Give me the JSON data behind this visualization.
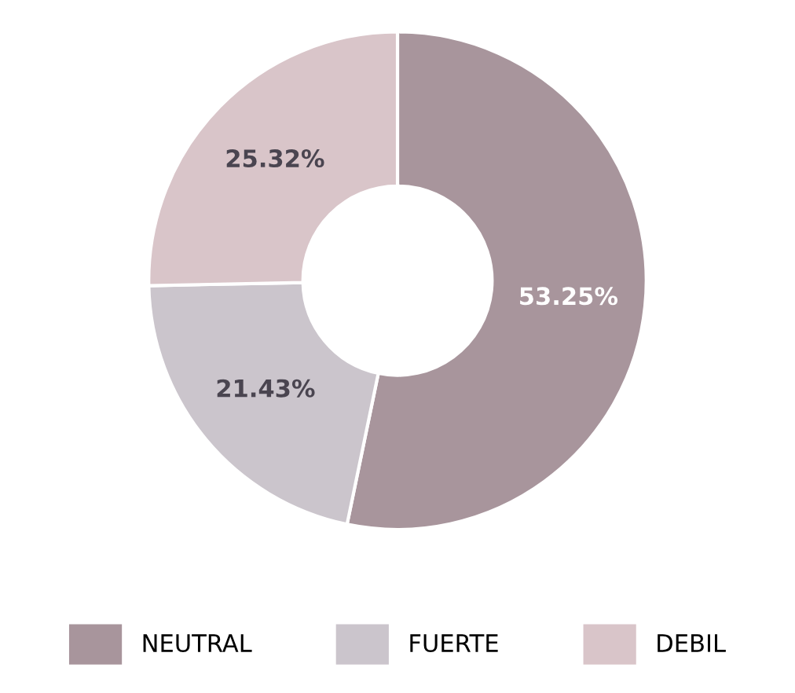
{
  "chart_data": {
    "type": "donut",
    "categories": [
      "NEUTRAL",
      "FUERTE",
      "DEBIL"
    ],
    "values": [
      53.25,
      21.43,
      25.32
    ],
    "colors": [
      "#a8959c",
      "#cbc5cc",
      "#d9c5c9"
    ],
    "value_labels": [
      "53.25%",
      "21.43%",
      "25.32%"
    ],
    "legend": "bottom"
  }
}
